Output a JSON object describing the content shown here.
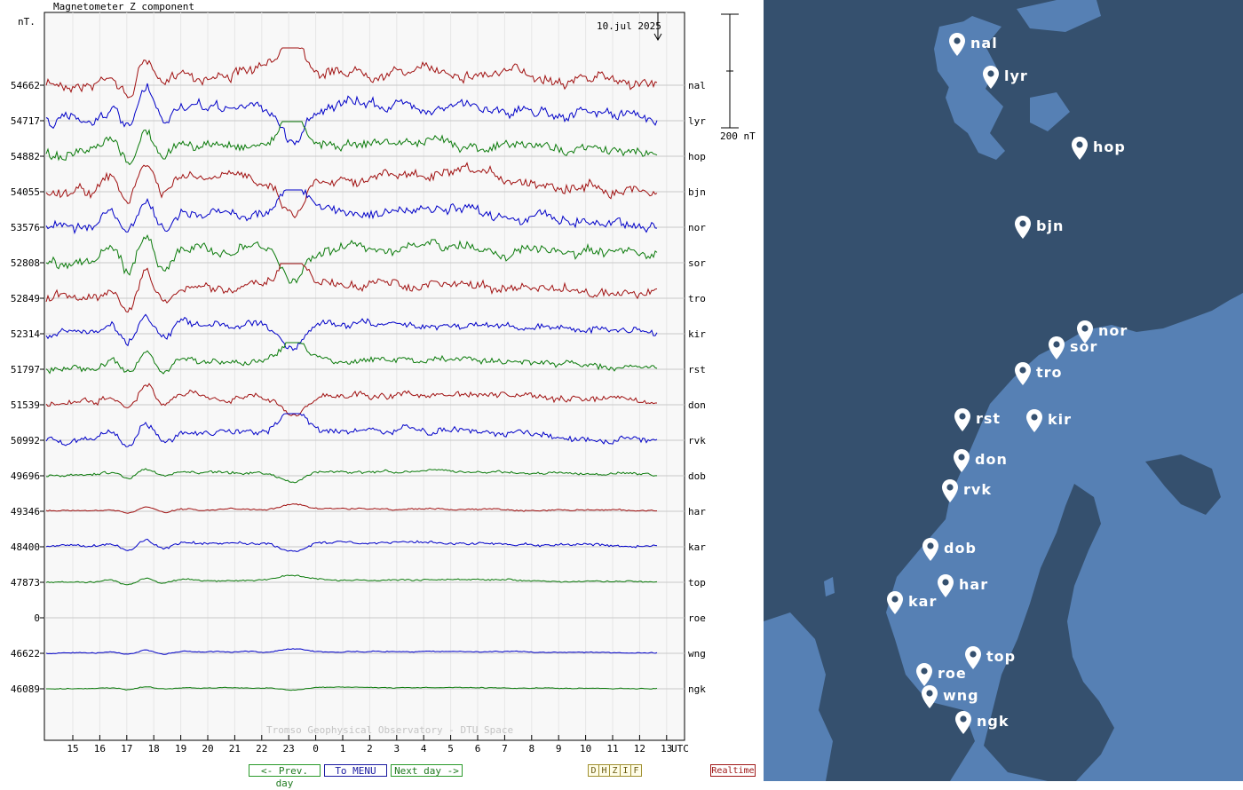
{
  "header": {
    "component_label": "Magnetometer Z component",
    "unit_label": "nT.",
    "date_label": "10.jul 2025",
    "scale_label": "200 nT"
  },
  "credit": "Tromso Geophysical Observatory - DTU Space",
  "nav": {
    "prev_label": "<- Prev. day",
    "menu_label": "To MENU",
    "next_label": "Next day ->",
    "components": [
      "D",
      "H",
      "Z",
      "I",
      "F"
    ],
    "realtime_label": "Realtime"
  },
  "chart_data": {
    "type": "line",
    "x_ticks": [
      "15",
      "16",
      "17",
      "18",
      "19",
      "20",
      "21",
      "22",
      "23",
      "0",
      "1",
      "2",
      "3",
      "4",
      "5",
      "6",
      "7",
      "8",
      "9",
      "10",
      "11",
      "12",
      "13"
    ],
    "x_unit": "UTC",
    "grid": true,
    "colors": {
      "red": "#a01010",
      "blue": "#0000c8",
      "green": "#0a7a0a"
    },
    "stations": [
      {
        "code": "nal",
        "baseline": "54662",
        "color": "red",
        "activity": 1.0
      },
      {
        "code": "lyr",
        "baseline": "54717",
        "color": "blue",
        "activity": 1.0
      },
      {
        "code": "hop",
        "baseline": "54882",
        "color": "green",
        "activity": 0.9
      },
      {
        "code": "bjn",
        "baseline": "54055",
        "color": "red",
        "activity": 1.0
      },
      {
        "code": "nor",
        "baseline": "53576",
        "color": "blue",
        "activity": 1.0
      },
      {
        "code": "sor",
        "baseline": "52808",
        "color": "green",
        "activity": 1.0
      },
      {
        "code": "tro",
        "baseline": "52849",
        "color": "red",
        "activity": 0.9
      },
      {
        "code": "kir",
        "baseline": "52314",
        "color": "blue",
        "activity": 0.7
      },
      {
        "code": "rst",
        "baseline": "51797",
        "color": "green",
        "activity": 0.6
      },
      {
        "code": "don",
        "baseline": "51539",
        "color": "red",
        "activity": 0.6
      },
      {
        "code": "rvk",
        "baseline": "50992",
        "color": "blue",
        "activity": 0.6
      },
      {
        "code": "dob",
        "baseline": "49696",
        "color": "green",
        "activity": 0.25
      },
      {
        "code": "har",
        "baseline": "49346",
        "color": "red",
        "activity": 0.15
      },
      {
        "code": "kar",
        "baseline": "48400",
        "color": "blue",
        "activity": 0.25
      },
      {
        "code": "top",
        "baseline": "47873",
        "color": "green",
        "activity": 0.15
      },
      {
        "code": "roe",
        "baseline": "0",
        "color": "none",
        "activity": 0
      },
      {
        "code": "wng",
        "baseline": "46622",
        "color": "blue",
        "activity": 0.1
      },
      {
        "code": "ngk",
        "baseline": "46089",
        "color": "green",
        "activity": 0.08
      }
    ]
  },
  "map": {
    "markers": [
      {
        "code": "nal"
      },
      {
        "code": "lyr"
      },
      {
        "code": "hop"
      },
      {
        "code": "bjn"
      },
      {
        "code": "nor"
      },
      {
        "code": "sor"
      },
      {
        "code": "tro"
      },
      {
        "code": "rst"
      },
      {
        "code": "kir"
      },
      {
        "code": "don"
      },
      {
        "code": "rvk"
      },
      {
        "code": "dob"
      },
      {
        "code": "har"
      },
      {
        "code": "kar"
      },
      {
        "code": "top"
      },
      {
        "code": "roe"
      },
      {
        "code": "wng"
      },
      {
        "code": "ngk"
      }
    ]
  }
}
